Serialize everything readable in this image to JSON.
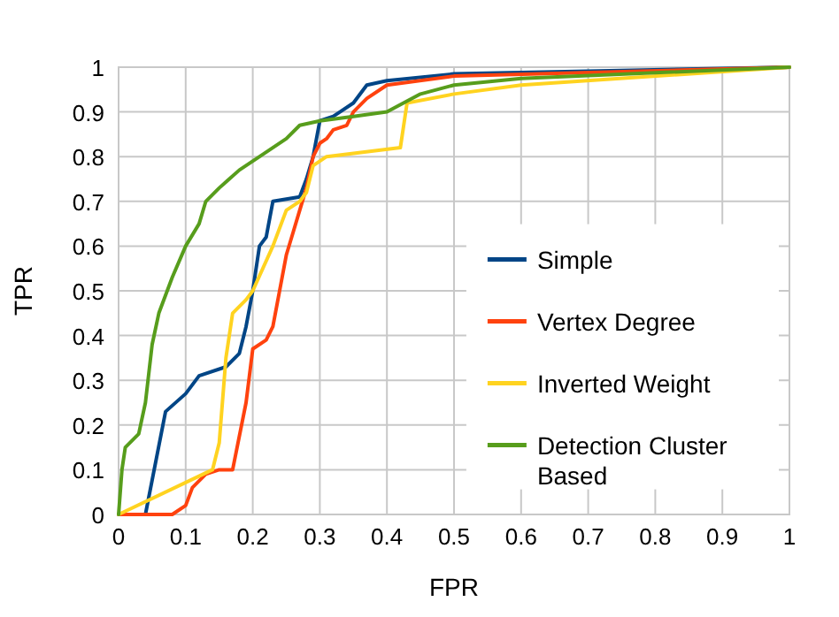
{
  "chart_data": {
    "type": "line",
    "xlabel": "FPR",
    "ylabel": "TPR",
    "xlim": [
      0,
      1
    ],
    "ylim": [
      0,
      1
    ],
    "xticks": [
      0,
      0.1,
      0.2,
      0.3,
      0.4,
      0.5,
      0.6,
      0.7,
      0.8,
      0.9,
      1
    ],
    "yticks": [
      0,
      0.1,
      0.2,
      0.3,
      0.4,
      0.5,
      0.6,
      0.7,
      0.8,
      0.9,
      1
    ],
    "grid": true,
    "legend": "right",
    "marker": "none",
    "line_style": "solid",
    "series": [
      {
        "name": "Simple",
        "color": "#004586",
        "x": [
          0,
          0.04,
          0.07,
          0.1,
          0.12,
          0.16,
          0.18,
          0.19,
          0.2,
          0.21,
          0.22,
          0.23,
          0.27,
          0.28,
          0.29,
          0.3,
          0.32,
          0.33,
          0.35,
          0.37,
          0.4,
          0.5,
          1
        ],
        "values": [
          0,
          0,
          0.23,
          0.27,
          0.31,
          0.33,
          0.36,
          0.42,
          0.5,
          0.6,
          0.62,
          0.7,
          0.71,
          0.75,
          0.8,
          0.88,
          0.89,
          0.9,
          0.92,
          0.96,
          0.97,
          0.985,
          1
        ]
      },
      {
        "name": "Vertex Degree",
        "color": "#ff420e",
        "x": [
          0,
          0.08,
          0.1,
          0.11,
          0.13,
          0.15,
          0.17,
          0.19,
          0.2,
          0.22,
          0.23,
          0.25,
          0.26,
          0.27,
          0.28,
          0.29,
          0.3,
          0.31,
          0.32,
          0.34,
          0.35,
          0.37,
          0.4,
          0.5,
          1
        ],
        "values": [
          0,
          0,
          0.02,
          0.06,
          0.09,
          0.1,
          0.1,
          0.25,
          0.37,
          0.39,
          0.42,
          0.58,
          0.63,
          0.68,
          0.73,
          0.8,
          0.83,
          0.84,
          0.86,
          0.87,
          0.9,
          0.93,
          0.96,
          0.98,
          1
        ]
      },
      {
        "name": "Inverted Weight",
        "color": "#ffd320",
        "x": [
          0,
          0.14,
          0.15,
          0.16,
          0.17,
          0.19,
          0.2,
          0.23,
          0.25,
          0.27,
          0.28,
          0.29,
          0.31,
          0.42,
          0.43,
          0.5,
          0.6,
          1
        ],
        "values": [
          0,
          0.1,
          0.16,
          0.35,
          0.45,
          0.48,
          0.5,
          0.6,
          0.68,
          0.7,
          0.72,
          0.78,
          0.8,
          0.82,
          0.92,
          0.94,
          0.96,
          1
        ]
      },
      {
        "name": "Detection Cluster Based",
        "color": "#579d1c",
        "x": [
          0,
          0.005,
          0.01,
          0.03,
          0.04,
          0.05,
          0.06,
          0.08,
          0.1,
          0.12,
          0.13,
          0.15,
          0.18,
          0.22,
          0.25,
          0.27,
          0.3,
          0.35,
          0.4,
          0.45,
          0.5,
          0.6,
          1
        ],
        "values": [
          0,
          0.1,
          0.15,
          0.18,
          0.25,
          0.38,
          0.45,
          0.53,
          0.6,
          0.65,
          0.7,
          0.73,
          0.77,
          0.81,
          0.84,
          0.87,
          0.88,
          0.89,
          0.9,
          0.94,
          0.96,
          0.975,
          1
        ]
      }
    ]
  }
}
